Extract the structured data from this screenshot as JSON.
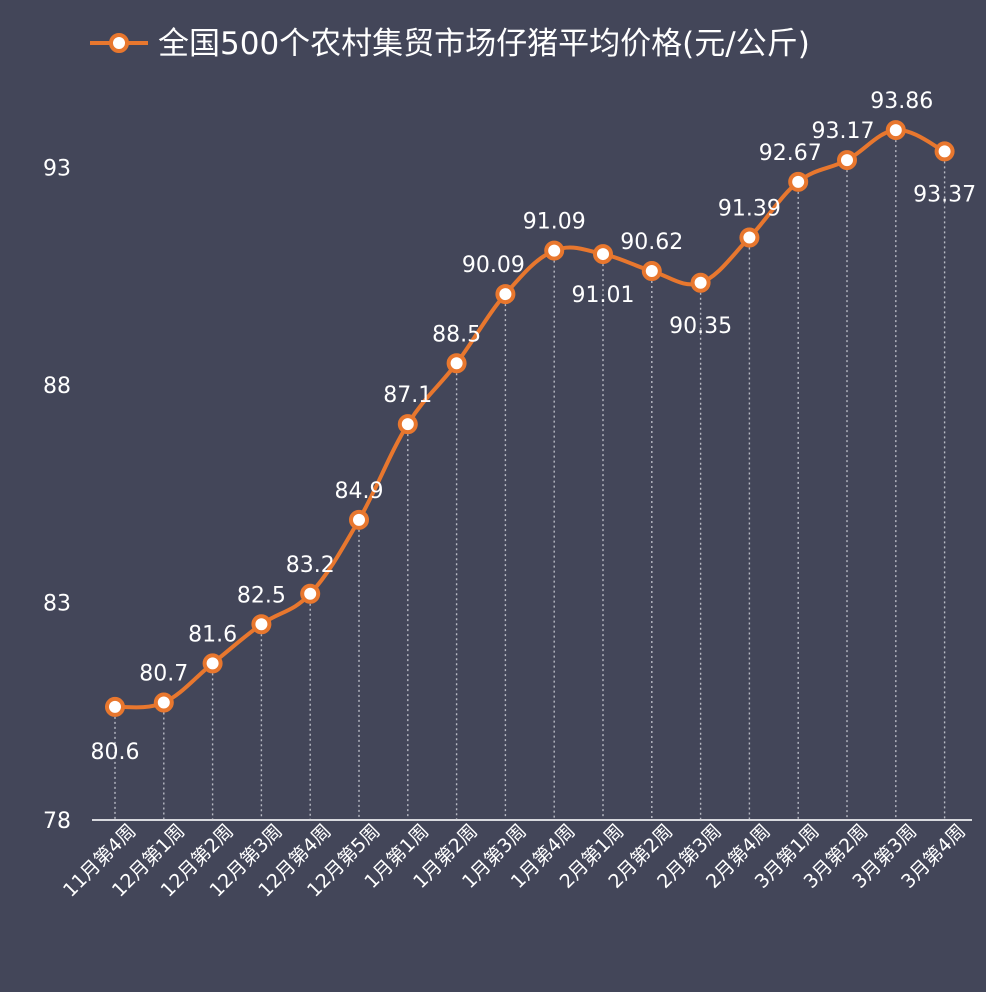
{
  "chart_data": {
    "type": "line",
    "title": "",
    "xlabel": "",
    "ylabel": "",
    "series": [
      {
        "name": "全国500个农村集贸市场仔猪平均价格(元/公斤)",
        "values": [
          80.6,
          80.7,
          81.6,
          82.5,
          83.2,
          84.9,
          87.1,
          88.5,
          90.09,
          91.09,
          91.01,
          90.62,
          90.35,
          91.39,
          92.67,
          93.17,
          93.86,
          93.37
        ],
        "labels": [
          "80.6",
          "80.7",
          "81.6",
          "82.5",
          "83.2",
          "84.9",
          "87.1",
          "88.5",
          "90.09",
          "91.09",
          "91.01",
          "90.62",
          "90.35",
          "91.39",
          "92.67",
          "93.17",
          "93.86",
          "93.37"
        ]
      }
    ],
    "categories": [
      "11月第4周",
      "12月第1周",
      "12月第2周",
      "12月第3周",
      "12月第4周",
      "12月第5周",
      "1月第1周",
      "1月第2周",
      "1月第3周",
      "1月第4周",
      "2月第1周",
      "2月第2周",
      "2月第3周",
      "2月第4周",
      "3月第1周",
      "3月第2周",
      "3月第3周",
      "3月第4周"
    ],
    "ylim": [
      78,
      95
    ],
    "yticks": [
      78,
      83,
      88,
      93
    ],
    "ytick_labels": [
      "78",
      "83",
      "88",
      "93"
    ],
    "grid": false,
    "drop_lines": true,
    "legend_position": "top",
    "colors": {
      "background": "#434659",
      "line": "#e8772e",
      "marker_fill": "#ffffff",
      "text": "#ffffff",
      "drop_line": "#b8bac4"
    }
  }
}
